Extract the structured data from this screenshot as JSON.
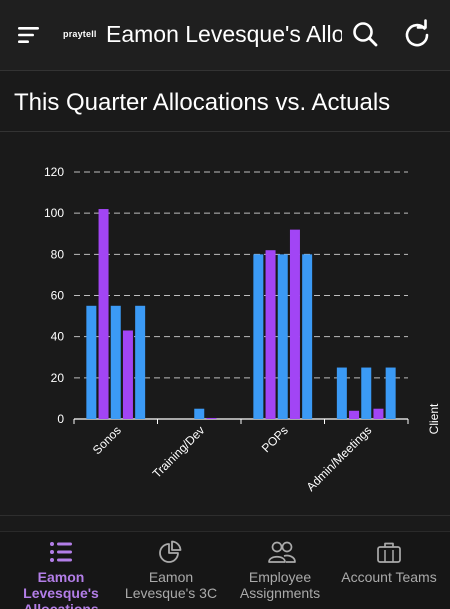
{
  "header": {
    "logo_text": "praytell",
    "title": "Eamon Levesque's Allocations",
    "menu_icon": "menu-icon",
    "search_icon": "search-icon",
    "refresh_icon": "refresh-icon"
  },
  "chart_title": "This Quarter Allocations vs. Actuals",
  "chart_data": {
    "type": "bar",
    "categories": [
      "Sonos",
      "Training/Dev",
      "POPs",
      "Admin/Meetings"
    ],
    "series": [
      {
        "values": [
          55,
          0,
          80,
          25
        ],
        "color": "#3b9af5"
      },
      {
        "values": [
          102,
          0,
          82,
          4
        ],
        "color": "#a245f5"
      },
      {
        "values": [
          55,
          5,
          80,
          25
        ],
        "color": "#3b9af5"
      },
      {
        "values": [
          43,
          0.5,
          92,
          5
        ],
        "color": "#a245f5"
      },
      {
        "values": [
          55,
          0,
          80,
          25
        ],
        "color": "#3b9af5"
      }
    ],
    "y_ticks": [
      0,
      20,
      40,
      60,
      80,
      100,
      120
    ],
    "ylim": [
      0,
      120
    ],
    "x_axis_label": "Client",
    "grid": "dashed horizontal"
  },
  "bottom_nav": [
    {
      "label_lines": [
        "Eamon",
        "Levesque's",
        "Allocations"
      ],
      "icon": "list-icon",
      "active": true
    },
    {
      "label_lines": [
        "Eamon",
        "Levesque's 3C"
      ],
      "icon": "pie-chart-icon",
      "active": false
    },
    {
      "label_lines": [
        "Employee",
        "Assignments"
      ],
      "icon": "people-icon",
      "active": false
    },
    {
      "label_lines": [
        "Account Teams"
      ],
      "icon": "briefcase-icon",
      "active": false
    }
  ],
  "colors": {
    "accent": "#b37ee8",
    "blue": "#3b9af5",
    "purple": "#a245f5",
    "background": "#1a1a1a"
  }
}
